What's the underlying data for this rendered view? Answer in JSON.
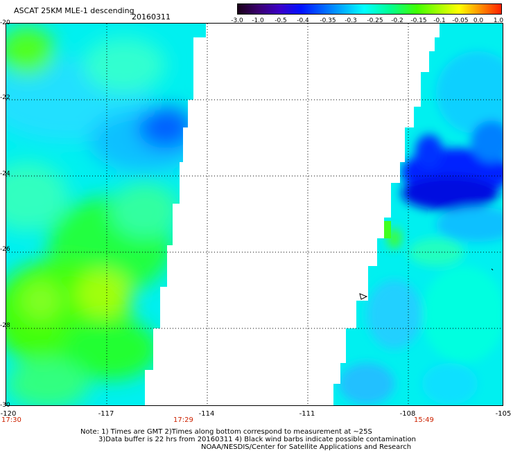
{
  "header": {
    "title": "ASCAT 25KM MLE-1 descending",
    "date": "20160311"
  },
  "colorbar": {
    "labels": [
      "-3.0",
      "-1.0",
      "-0.5",
      "-0.4",
      "-0.35",
      "-0.3",
      "-0.25",
      "-0.2",
      "-0.15",
      "-0.1",
      "-0.05",
      "0.0",
      "1.0"
    ],
    "colors": [
      "#1a0018",
      "#3b00c8",
      "#0010ff",
      "#00b0ff",
      "#00ffff",
      "#40ff00",
      "#ffff00",
      "#ff9000",
      "#ff2000"
    ]
  },
  "axes": {
    "lat_labels": [
      "-20",
      "-22",
      "-24",
      "-26",
      "-28",
      "-30"
    ],
    "lon_labels": [
      "-120",
      "-117",
      "-114",
      "-111",
      "-108",
      "-105"
    ],
    "lon_range": [
      -120,
      -105
    ],
    "lat_range": [
      -20,
      -30
    ]
  },
  "times": {
    "t1": "17:30",
    "t2": "17:29",
    "t3": "15:49"
  },
  "notes": {
    "line1": "Note: 1) Times are GMT 2)Times along bottom correspond to measurement at ~25S",
    "line2": "3)Data buffer is 22 hrs from 20160311 4) Black wind barbs indicate possible contamination",
    "line3": "NOAA/NESDIS/Center for Satellite Applications and Research"
  }
}
